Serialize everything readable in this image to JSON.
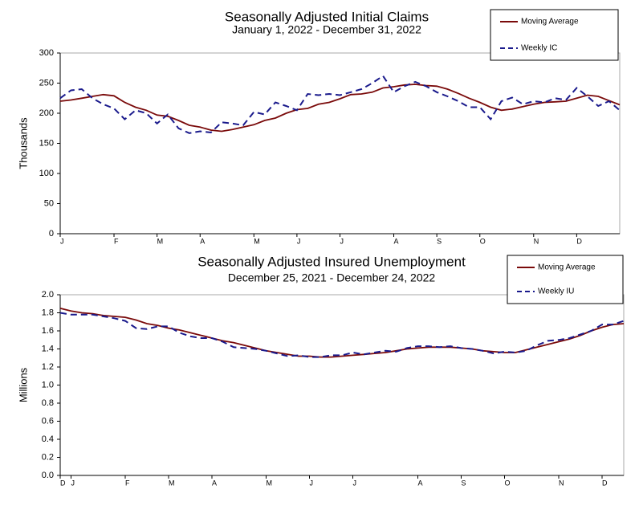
{
  "chart_data": [
    {
      "type": "line",
      "title": "Seasonally Adjusted Initial Claims",
      "subtitle": "January 1, 2022 - December 31, 2022",
      "y_label": "Thousands",
      "x": [
        0,
        1,
        2,
        3,
        4,
        5,
        6,
        7,
        8,
        9,
        10,
        11,
        12,
        13,
        14,
        15,
        16,
        17,
        18,
        19,
        20,
        21,
        22,
        23,
        24,
        25,
        26,
        27,
        28,
        29,
        30,
        31,
        32,
        33,
        34,
        35,
        36,
        37,
        38,
        39,
        40,
        41,
        42,
        43,
        44,
        45,
        46,
        47,
        48,
        49,
        50,
        51,
        52
      ],
      "xlim": [
        0,
        52
      ],
      "xticks": [
        {
          "value": 0,
          "label": "J"
        },
        {
          "value": 5,
          "label": "F"
        },
        {
          "value": 9,
          "label": "M"
        },
        {
          "value": 13,
          "label": "A"
        },
        {
          "value": 18,
          "label": "M"
        },
        {
          "value": 22,
          "label": "J"
        },
        {
          "value": 26,
          "label": "J"
        },
        {
          "value": 31,
          "label": "A"
        },
        {
          "value": 35,
          "label": "S"
        },
        {
          "value": 39,
          "label": "O"
        },
        {
          "value": 44,
          "label": "N"
        },
        {
          "value": 48,
          "label": "D"
        }
      ],
      "ylim": [
        0,
        300
      ],
      "yticks": [
        0,
        50,
        100,
        150,
        200,
        250,
        300
      ],
      "legend": "upper right",
      "series": [
        {
          "name": "Moving Average",
          "color": "#7a0a0a",
          "dash": false,
          "values": [
            220,
            222,
            225,
            228,
            231,
            229,
            218,
            210,
            205,
            197,
            195,
            188,
            180,
            177,
            172,
            170,
            173,
            177,
            181,
            188,
            192,
            200,
            206,
            208,
            215,
            218,
            224,
            231,
            232,
            235,
            242,
            244,
            247,
            248,
            246,
            245,
            240,
            233,
            225,
            218,
            210,
            205,
            207,
            211,
            215,
            218,
            219,
            220,
            225,
            230,
            228,
            221,
            214
          ]
        },
        {
          "name": "Weekly IC",
          "color": "#1a1a8c",
          "dash": true,
          "values": [
            225,
            238,
            240,
            225,
            215,
            208,
            190,
            205,
            200,
            183,
            198,
            175,
            167,
            170,
            168,
            185,
            183,
            180,
            202,
            198,
            218,
            212,
            205,
            232,
            230,
            232,
            230,
            235,
            240,
            250,
            262,
            235,
            245,
            252,
            245,
            235,
            228,
            220,
            210,
            210,
            190,
            220,
            226,
            215,
            220,
            218,
            225,
            222,
            242,
            228,
            212,
            220,
            205
          ]
        }
      ]
    },
    {
      "type": "line",
      "title": "Seasonally Adjusted Insured Unemployment",
      "subtitle": "December 25, 2021 - December 24, 2022",
      "y_label": "Millions",
      "x": [
        0,
        1,
        2,
        3,
        4,
        5,
        6,
        7,
        8,
        9,
        10,
        11,
        12,
        13,
        14,
        15,
        16,
        17,
        18,
        19,
        20,
        21,
        22,
        23,
        24,
        25,
        26,
        27,
        28,
        29,
        30,
        31,
        32,
        33,
        34,
        35,
        36,
        37,
        38,
        39,
        40,
        41,
        42,
        43,
        44,
        45,
        46,
        47,
        48,
        49,
        50,
        51,
        52
      ],
      "xlim": [
        0,
        52
      ],
      "xticks": [
        {
          "value": 0,
          "label": "D"
        },
        {
          "value": 1,
          "label": "J"
        },
        {
          "value": 6,
          "label": "F"
        },
        {
          "value": 10,
          "label": "M"
        },
        {
          "value": 14,
          "label": "A"
        },
        {
          "value": 19,
          "label": "M"
        },
        {
          "value": 23,
          "label": "J"
        },
        {
          "value": 27,
          "label": "J"
        },
        {
          "value": 33,
          "label": "A"
        },
        {
          "value": 37,
          "label": "S"
        },
        {
          "value": 41,
          "label": "O"
        },
        {
          "value": 46,
          "label": "N"
        },
        {
          "value": 50,
          "label": "D"
        }
      ],
      "ylim": [
        0,
        2
      ],
      "yticks": [
        {
          "value": 0,
          "label": "0.0"
        },
        0.2,
        0.4,
        0.6,
        0.8,
        {
          "value": 1,
          "label": "1.0"
        },
        1.2,
        1.4,
        1.6,
        1.8,
        {
          "value": 2,
          "label": "2.0"
        }
      ],
      "legend": "upper right",
      "series": [
        {
          "name": "Moving Average",
          "color": "#7a0a0a",
          "dash": false,
          "values": [
            1.85,
            1.82,
            1.8,
            1.79,
            1.77,
            1.76,
            1.75,
            1.72,
            1.68,
            1.66,
            1.63,
            1.61,
            1.58,
            1.55,
            1.52,
            1.49,
            1.47,
            1.44,
            1.41,
            1.38,
            1.36,
            1.34,
            1.32,
            1.32,
            1.31,
            1.31,
            1.32,
            1.33,
            1.34,
            1.35,
            1.36,
            1.38,
            1.4,
            1.41,
            1.42,
            1.42,
            1.42,
            1.41,
            1.4,
            1.38,
            1.37,
            1.36,
            1.36,
            1.39,
            1.42,
            1.45,
            1.48,
            1.51,
            1.55,
            1.6,
            1.64,
            1.67,
            1.68
          ]
        },
        {
          "name": "Weekly IU",
          "color": "#1a1a8c",
          "dash": true,
          "values": [
            1.8,
            1.78,
            1.78,
            1.78,
            1.76,
            1.74,
            1.71,
            1.63,
            1.62,
            1.65,
            1.65,
            1.58,
            1.54,
            1.52,
            1.52,
            1.48,
            1.42,
            1.41,
            1.4,
            1.38,
            1.35,
            1.32,
            1.33,
            1.31,
            1.31,
            1.33,
            1.33,
            1.36,
            1.34,
            1.36,
            1.38,
            1.37,
            1.41,
            1.43,
            1.43,
            1.42,
            1.43,
            1.41,
            1.4,
            1.38,
            1.35,
            1.37,
            1.36,
            1.38,
            1.44,
            1.49,
            1.5,
            1.52,
            1.56,
            1.6,
            1.67,
            1.67,
            1.71
          ]
        }
      ]
    }
  ]
}
